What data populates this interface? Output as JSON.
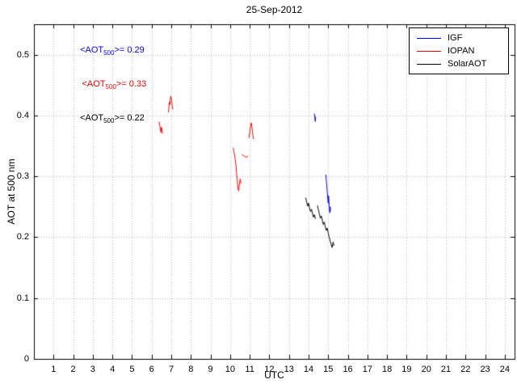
{
  "chart_data": {
    "type": "line",
    "title": "25-Sep-2012",
    "xlabel": "UTC",
    "ylabel": "AOT at 500 nm",
    "xlim": [
      0,
      24.5
    ],
    "ylim": [
      0,
      0.55
    ],
    "xticks": [
      1,
      2,
      3,
      4,
      5,
      6,
      7,
      8,
      9,
      10,
      11,
      12,
      13,
      14,
      15,
      16,
      17,
      18,
      19,
      20,
      21,
      22,
      23,
      24
    ],
    "yticks": [
      0,
      0.1,
      0.2,
      0.3,
      0.4,
      0.5
    ],
    "grid": true,
    "legend_position": "top-right",
    "series": [
      {
        "name": "IGF",
        "color": "#0000ff",
        "mean_aot_500": 0.29,
        "segments": [
          [
            [
              14.3,
              0.403
            ],
            [
              14.32,
              0.396
            ],
            [
              14.34,
              0.39
            ],
            [
              14.36,
              0.398
            ]
          ],
          [
            [
              14.88,
              0.303
            ],
            [
              14.9,
              0.295
            ],
            [
              14.92,
              0.287
            ],
            [
              14.94,
              0.279
            ],
            [
              14.96,
              0.271
            ],
            [
              14.98,
              0.263
            ],
            [
              15.0,
              0.256
            ],
            [
              15.02,
              0.268
            ],
            [
              15.04,
              0.258
            ],
            [
              15.06,
              0.248
            ],
            [
              15.08,
              0.24
            ],
            [
              15.1,
              0.25
            ],
            [
              15.12,
              0.243
            ]
          ]
        ]
      },
      {
        "name": "IOPAN",
        "color": "#ff0000",
        "mean_aot_500": 0.33,
        "segments": [
          [
            [
              6.38,
              0.39
            ],
            [
              6.42,
              0.383
            ],
            [
              6.45,
              0.376
            ],
            [
              6.48,
              0.372
            ],
            [
              6.5,
              0.381
            ],
            [
              6.53,
              0.375
            ],
            [
              6.56,
              0.37
            ]
          ],
          [
            [
              6.85,
              0.405
            ],
            [
              6.88,
              0.413
            ],
            [
              6.9,
              0.422
            ],
            [
              6.93,
              0.418
            ],
            [
              6.95,
              0.427
            ],
            [
              6.98,
              0.432
            ],
            [
              7.02,
              0.424
            ],
            [
              7.05,
              0.416
            ],
            [
              7.08,
              0.41
            ]
          ],
          [
            [
              10.15,
              0.347
            ],
            [
              10.2,
              0.34
            ],
            [
              10.25,
              0.33
            ],
            [
              10.3,
              0.318
            ],
            [
              10.33,
              0.305
            ],
            [
              10.37,
              0.292
            ],
            [
              10.4,
              0.28
            ],
            [
              10.44,
              0.276
            ],
            [
              10.48,
              0.29
            ],
            [
              10.52,
              0.296
            ],
            [
              10.55,
              0.288
            ]
          ],
          [
            [
              10.6,
              0.336
            ],
            [
              10.68,
              0.334
            ],
            [
              10.76,
              0.333
            ],
            [
              10.84,
              0.331
            ],
            [
              10.9,
              0.334
            ]
          ],
          [
            [
              10.95,
              0.363
            ],
            [
              11.0,
              0.372
            ],
            [
              11.04,
              0.382
            ],
            [
              11.08,
              0.388
            ],
            [
              11.12,
              0.379
            ],
            [
              11.16,
              0.368
            ],
            [
              11.2,
              0.361
            ]
          ]
        ]
      },
      {
        "name": "SolarAOT",
        "color": "#000000",
        "mean_aot_500": 0.22,
        "segments": [
          [
            [
              13.85,
              0.265
            ],
            [
              13.9,
              0.258
            ],
            [
              13.95,
              0.251
            ],
            [
              14.0,
              0.256
            ],
            [
              14.05,
              0.248
            ],
            [
              14.1,
              0.242
            ],
            [
              14.15,
              0.246
            ],
            [
              14.2,
              0.239
            ],
            [
              14.25,
              0.233
            ],
            [
              14.3,
              0.237
            ],
            [
              14.35,
              0.23
            ]
          ],
          [
            [
              14.45,
              0.252
            ],
            [
              14.5,
              0.245
            ],
            [
              14.55,
              0.238
            ],
            [
              14.6,
              0.231
            ],
            [
              14.65,
              0.235
            ],
            [
              14.7,
              0.228
            ],
            [
              14.75,
              0.221
            ],
            [
              14.8,
              0.225
            ],
            [
              14.85,
              0.217
            ],
            [
              14.9,
              0.211
            ],
            [
              14.95,
              0.215
            ],
            [
              15.0,
              0.207
            ],
            [
              15.05,
              0.2
            ],
            [
              15.1,
              0.194
            ],
            [
              15.15,
              0.188
            ],
            [
              15.2,
              0.183
            ],
            [
              15.25,
              0.192
            ],
            [
              15.3,
              0.186
            ]
          ]
        ]
      }
    ],
    "annotations": [
      {
        "prefix": "<AOT",
        "sub": "500",
        "suffix": ">= 0.29",
        "x": 2.35,
        "y": 0.506,
        "color": "#0000ff"
      },
      {
        "prefix": "<AOT",
        "sub": "500",
        "suffix": ">= 0.33",
        "x": 2.45,
        "y": 0.45,
        "color": "#ff0000"
      },
      {
        "prefix": "<AOT",
        "sub": "500",
        "suffix": ">= 0.22",
        "x": 2.35,
        "y": 0.394,
        "color": "#000000"
      }
    ]
  }
}
